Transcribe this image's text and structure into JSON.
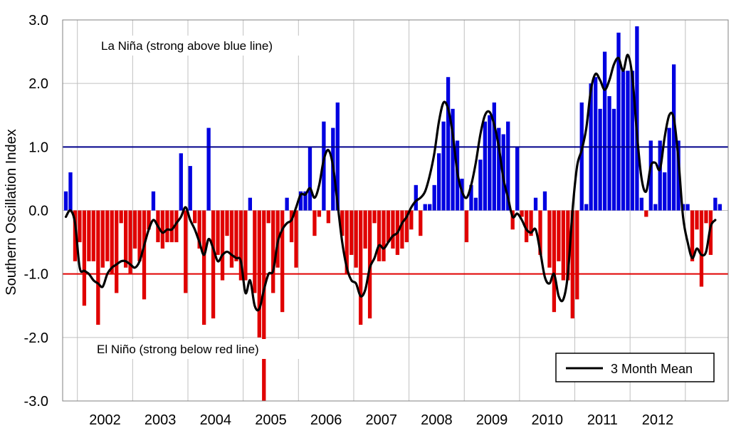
{
  "chart_data": {
    "type": "bar",
    "title": "",
    "xlabel": "",
    "ylabel": "Southern Oscillation Index",
    "ylim": [
      -3.0,
      3.0
    ],
    "yticks": [
      "3.0",
      "2.0",
      "1.0",
      "0.0",
      "-1.0",
      "-2.0",
      "-3.0"
    ],
    "year_labels": [
      "2002",
      "2003",
      "2004",
      "2005",
      "2006",
      "2007",
      "2008",
      "2009",
      "2010",
      "2011",
      "2012"
    ],
    "grid": true,
    "reference_lines": [
      {
        "value": 1.0,
        "color": "#00008b"
      },
      {
        "value": -1.0,
        "color": "#e00000"
      }
    ],
    "annotations": {
      "la_nina": "La Niña (strong above blue line)",
      "el_nino": "El Niño (strong below red line)"
    },
    "legend": {
      "label": "3 Month Mean",
      "placement": "bottom-right"
    },
    "colors": {
      "positive": "#0000e0",
      "negative": "#e00000",
      "mean_line": "#000000"
    },
    "x_start": "2001-10",
    "monthly_values": [
      0.3,
      0.6,
      -0.8,
      -0.5,
      -1.5,
      -0.8,
      -0.8,
      -1.8,
      -0.9,
      -0.8,
      -1.0,
      -1.3,
      -0.2,
      -0.9,
      -1.0,
      -0.6,
      -0.8,
      -1.4,
      -0.3,
      0.3,
      -0.5,
      -0.6,
      -0.5,
      -0.5,
      -0.5,
      0.9,
      -1.3,
      0.7,
      -0.2,
      -0.6,
      -1.8,
      1.3,
      -1.7,
      -0.7,
      -1.1,
      -0.4,
      -0.9,
      -0.8,
      -1.1,
      -1.1,
      0.2,
      -1.3,
      -2.0,
      -3.0,
      -0.2,
      -1.3,
      -0.9,
      -1.6,
      0.2,
      -0.5,
      -0.9,
      0.3,
      0.3,
      1.0,
      -0.4,
      -0.1,
      1.4,
      -0.2,
      1.3,
      1.7,
      -0.4,
      -1.0,
      -0.7,
      -0.9,
      -1.8,
      -0.6,
      -1.7,
      -0.2,
      -0.8,
      -0.8,
      -0.5,
      -0.6,
      -0.7,
      -0.6,
      -0.5,
      -0.3,
      0.4,
      -0.4,
      0.1,
      0.1,
      0.4,
      0.9,
      1.4,
      2.1,
      1.6,
      1.1,
      0.5,
      -0.5,
      0.4,
      0.2,
      0.8,
      1.4,
      1.5,
      1.7,
      1.3,
      1.2,
      1.4,
      -0.3,
      1.0,
      -0.1,
      -0.5,
      -0.4,
      0.2,
      -0.7,
      0.3,
      -0.9,
      -1.6,
      -0.8,
      -1.1,
      -1.1,
      -1.7,
      -1.4,
      1.7,
      0.1,
      2.0,
      2.1,
      1.6,
      2.5,
      1.8,
      1.6,
      2.8,
      2.2,
      2.2,
      2.2,
      2.9,
      0.2,
      -0.1,
      1.1,
      0.1,
      1.1,
      0.6,
      1.3,
      2.3,
      1.1,
      0.1,
      0.1,
      -0.8,
      -0.3,
      -1.2,
      -0.2,
      -0.7,
      0.2,
      0.1
    ],
    "three_month_mean": [
      -0.1,
      0.0,
      -0.2,
      -0.9,
      -0.95,
      -1.0,
      -1.1,
      -1.15,
      -1.2,
      -1.0,
      -0.9,
      -0.85,
      -0.8,
      -0.8,
      -0.85,
      -0.9,
      -0.8,
      -0.55,
      -0.3,
      -0.15,
      -0.25,
      -0.35,
      -0.3,
      -0.3,
      -0.2,
      -0.1,
      0.05,
      -0.15,
      -0.3,
      -0.5,
      -0.7,
      -0.45,
      -0.6,
      -0.8,
      -0.7,
      -0.65,
      -0.7,
      -0.75,
      -0.8,
      -1.3,
      -1.1,
      -1.5,
      -1.55,
      -1.25,
      -1.0,
      -0.95,
      -0.5,
      -0.3,
      -0.2,
      -0.15,
      0.05,
      0.25,
      0.25,
      0.35,
      0.2,
      0.4,
      0.8,
      0.95,
      0.7,
      0.1,
      -0.5,
      -0.9,
      -1.1,
      -1.15,
      -1.35,
      -1.25,
      -0.9,
      -0.75,
      -0.55,
      -0.6,
      -0.5,
      -0.4,
      -0.35,
      -0.2,
      -0.1,
      0.05,
      0.15,
      0.2,
      0.3,
      0.55,
      0.9,
      1.4,
      1.7,
      1.6,
      1.2,
      0.6,
      0.3,
      0.2,
      0.4,
      0.75,
      1.2,
      1.5,
      1.55,
      1.35,
      1.0,
      0.5,
      0.2,
      -0.1,
      -0.05,
      -0.15,
      -0.3,
      -0.35,
      -0.3,
      -0.65,
      -1.05,
      -1.15,
      -1.0,
      -1.35,
      -1.4,
      -1.0,
      0.0,
      0.7,
      0.95,
      1.3,
      1.9,
      2.15,
      2.05,
      1.9,
      2.05,
      2.3,
      2.4,
      2.2,
      2.45,
      2.1,
      1.2,
      0.5,
      0.3,
      0.7,
      0.75,
      0.65,
      1.15,
      1.5,
      1.45,
      0.8,
      -0.1,
      -0.5,
      -0.75,
      -0.6,
      -0.7,
      -0.65,
      -0.25,
      -0.15
    ]
  }
}
